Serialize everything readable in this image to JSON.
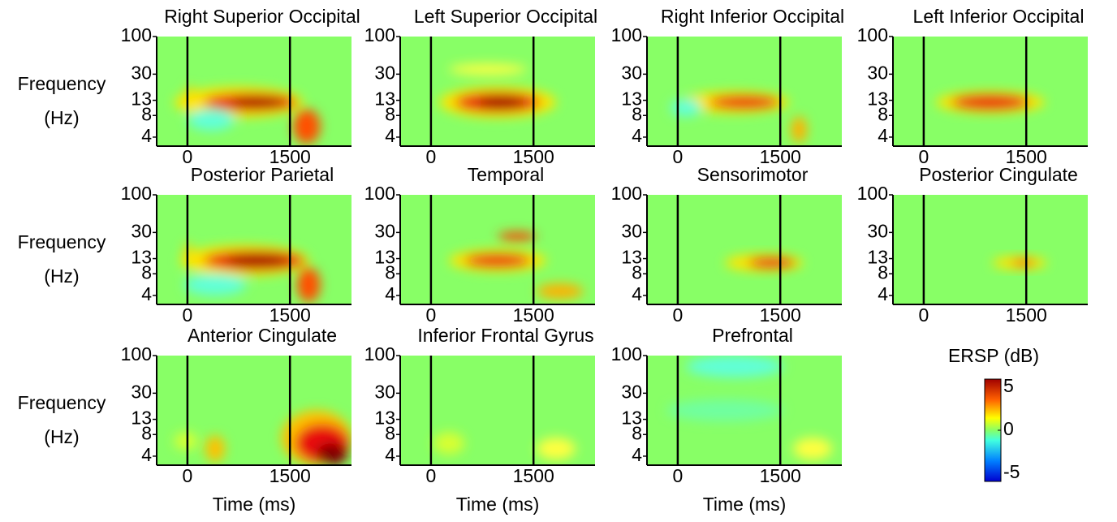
{
  "chart_data": [
    {
      "type": "heatmap",
      "title": "Right Superior Occipital",
      "ylabel": [
        "Frequency",
        "(Hz)"
      ],
      "xlim": [
        -450,
        2400
      ],
      "xticks": [
        0,
        1500
      ],
      "ylim": [
        3,
        100
      ],
      "yticks": [
        4,
        8,
        13,
        30,
        100
      ],
      "yscale": "log"
    },
    {
      "type": "heatmap",
      "title": "Left Superior Occipital",
      "xlim": [
        -450,
        2400
      ],
      "xticks": [
        0,
        1500
      ],
      "ylim": [
        3,
        100
      ],
      "yticks": [
        4,
        8,
        13,
        30,
        100
      ],
      "yscale": "log"
    },
    {
      "type": "heatmap",
      "title": "Right Inferior Occipital",
      "xlim": [
        -450,
        2400
      ],
      "xticks": [
        0,
        1500
      ],
      "ylim": [
        3,
        100
      ],
      "yticks": [
        4,
        8,
        13,
        30,
        100
      ],
      "yscale": "log"
    },
    {
      "type": "heatmap",
      "title": "Left Inferior Occipital",
      "xlim": [
        -450,
        2400
      ],
      "xticks": [
        0,
        1500
      ],
      "ylim": [
        3,
        100
      ],
      "yticks": [
        4,
        8,
        13,
        30,
        100
      ],
      "yscale": "log"
    },
    {
      "type": "heatmap",
      "title": "Posterior Parietal",
      "ylabel": [
        "Frequency",
        "(Hz)"
      ],
      "xlim": [
        -450,
        2400
      ],
      "xticks": [
        0,
        1500
      ],
      "ylim": [
        3,
        100
      ],
      "yticks": [
        4,
        8,
        13,
        30,
        100
      ],
      "yscale": "log"
    },
    {
      "type": "heatmap",
      "title": "Temporal",
      "xlim": [
        -450,
        2400
      ],
      "xticks": [
        0,
        1500
      ],
      "ylim": [
        3,
        100
      ],
      "yticks": [
        4,
        8,
        13,
        30,
        100
      ],
      "yscale": "log"
    },
    {
      "type": "heatmap",
      "title": "Sensorimotor",
      "xlim": [
        -450,
        2400
      ],
      "xticks": [
        0,
        1500
      ],
      "ylim": [
        3,
        100
      ],
      "yticks": [
        4,
        8,
        13,
        30,
        100
      ],
      "yscale": "log"
    },
    {
      "type": "heatmap",
      "title": "Posterior Cingulate",
      "xlim": [
        -450,
        2400
      ],
      "xticks": [
        0,
        1500
      ],
      "ylim": [
        3,
        100
      ],
      "yticks": [
        4,
        8,
        13,
        30,
        100
      ],
      "yscale": "log"
    },
    {
      "type": "heatmap",
      "title": "Anterior Cingulate",
      "ylabel": [
        "Frequency",
        "(Hz)"
      ],
      "xlabel": "Time (ms)",
      "xlim": [
        -450,
        2400
      ],
      "xticks": [
        0,
        1500
      ],
      "ylim": [
        3,
        100
      ],
      "yticks": [
        4,
        8,
        13,
        30,
        100
      ],
      "yscale": "log"
    },
    {
      "type": "heatmap",
      "title": "Inferior Frontal Gyrus",
      "xlabel": "Time (ms)",
      "xlim": [
        -450,
        2400
      ],
      "xticks": [
        0,
        1500
      ],
      "ylim": [
        3,
        100
      ],
      "yticks": [
        4,
        8,
        13,
        30,
        100
      ],
      "yscale": "log"
    },
    {
      "type": "heatmap",
      "title": "Prefrontal",
      "xlabel": "Time (ms)",
      "xlim": [
        -450,
        2400
      ],
      "xticks": [
        0,
        1500
      ],
      "ylim": [
        3,
        100
      ],
      "yticks": [
        4,
        8,
        13,
        30,
        100
      ],
      "yscale": "log"
    }
  ],
  "colorbar": {
    "label": "ERSP (dB)",
    "lim": [
      -5,
      5
    ],
    "ticks": [
      5,
      0,
      -5
    ]
  }
}
